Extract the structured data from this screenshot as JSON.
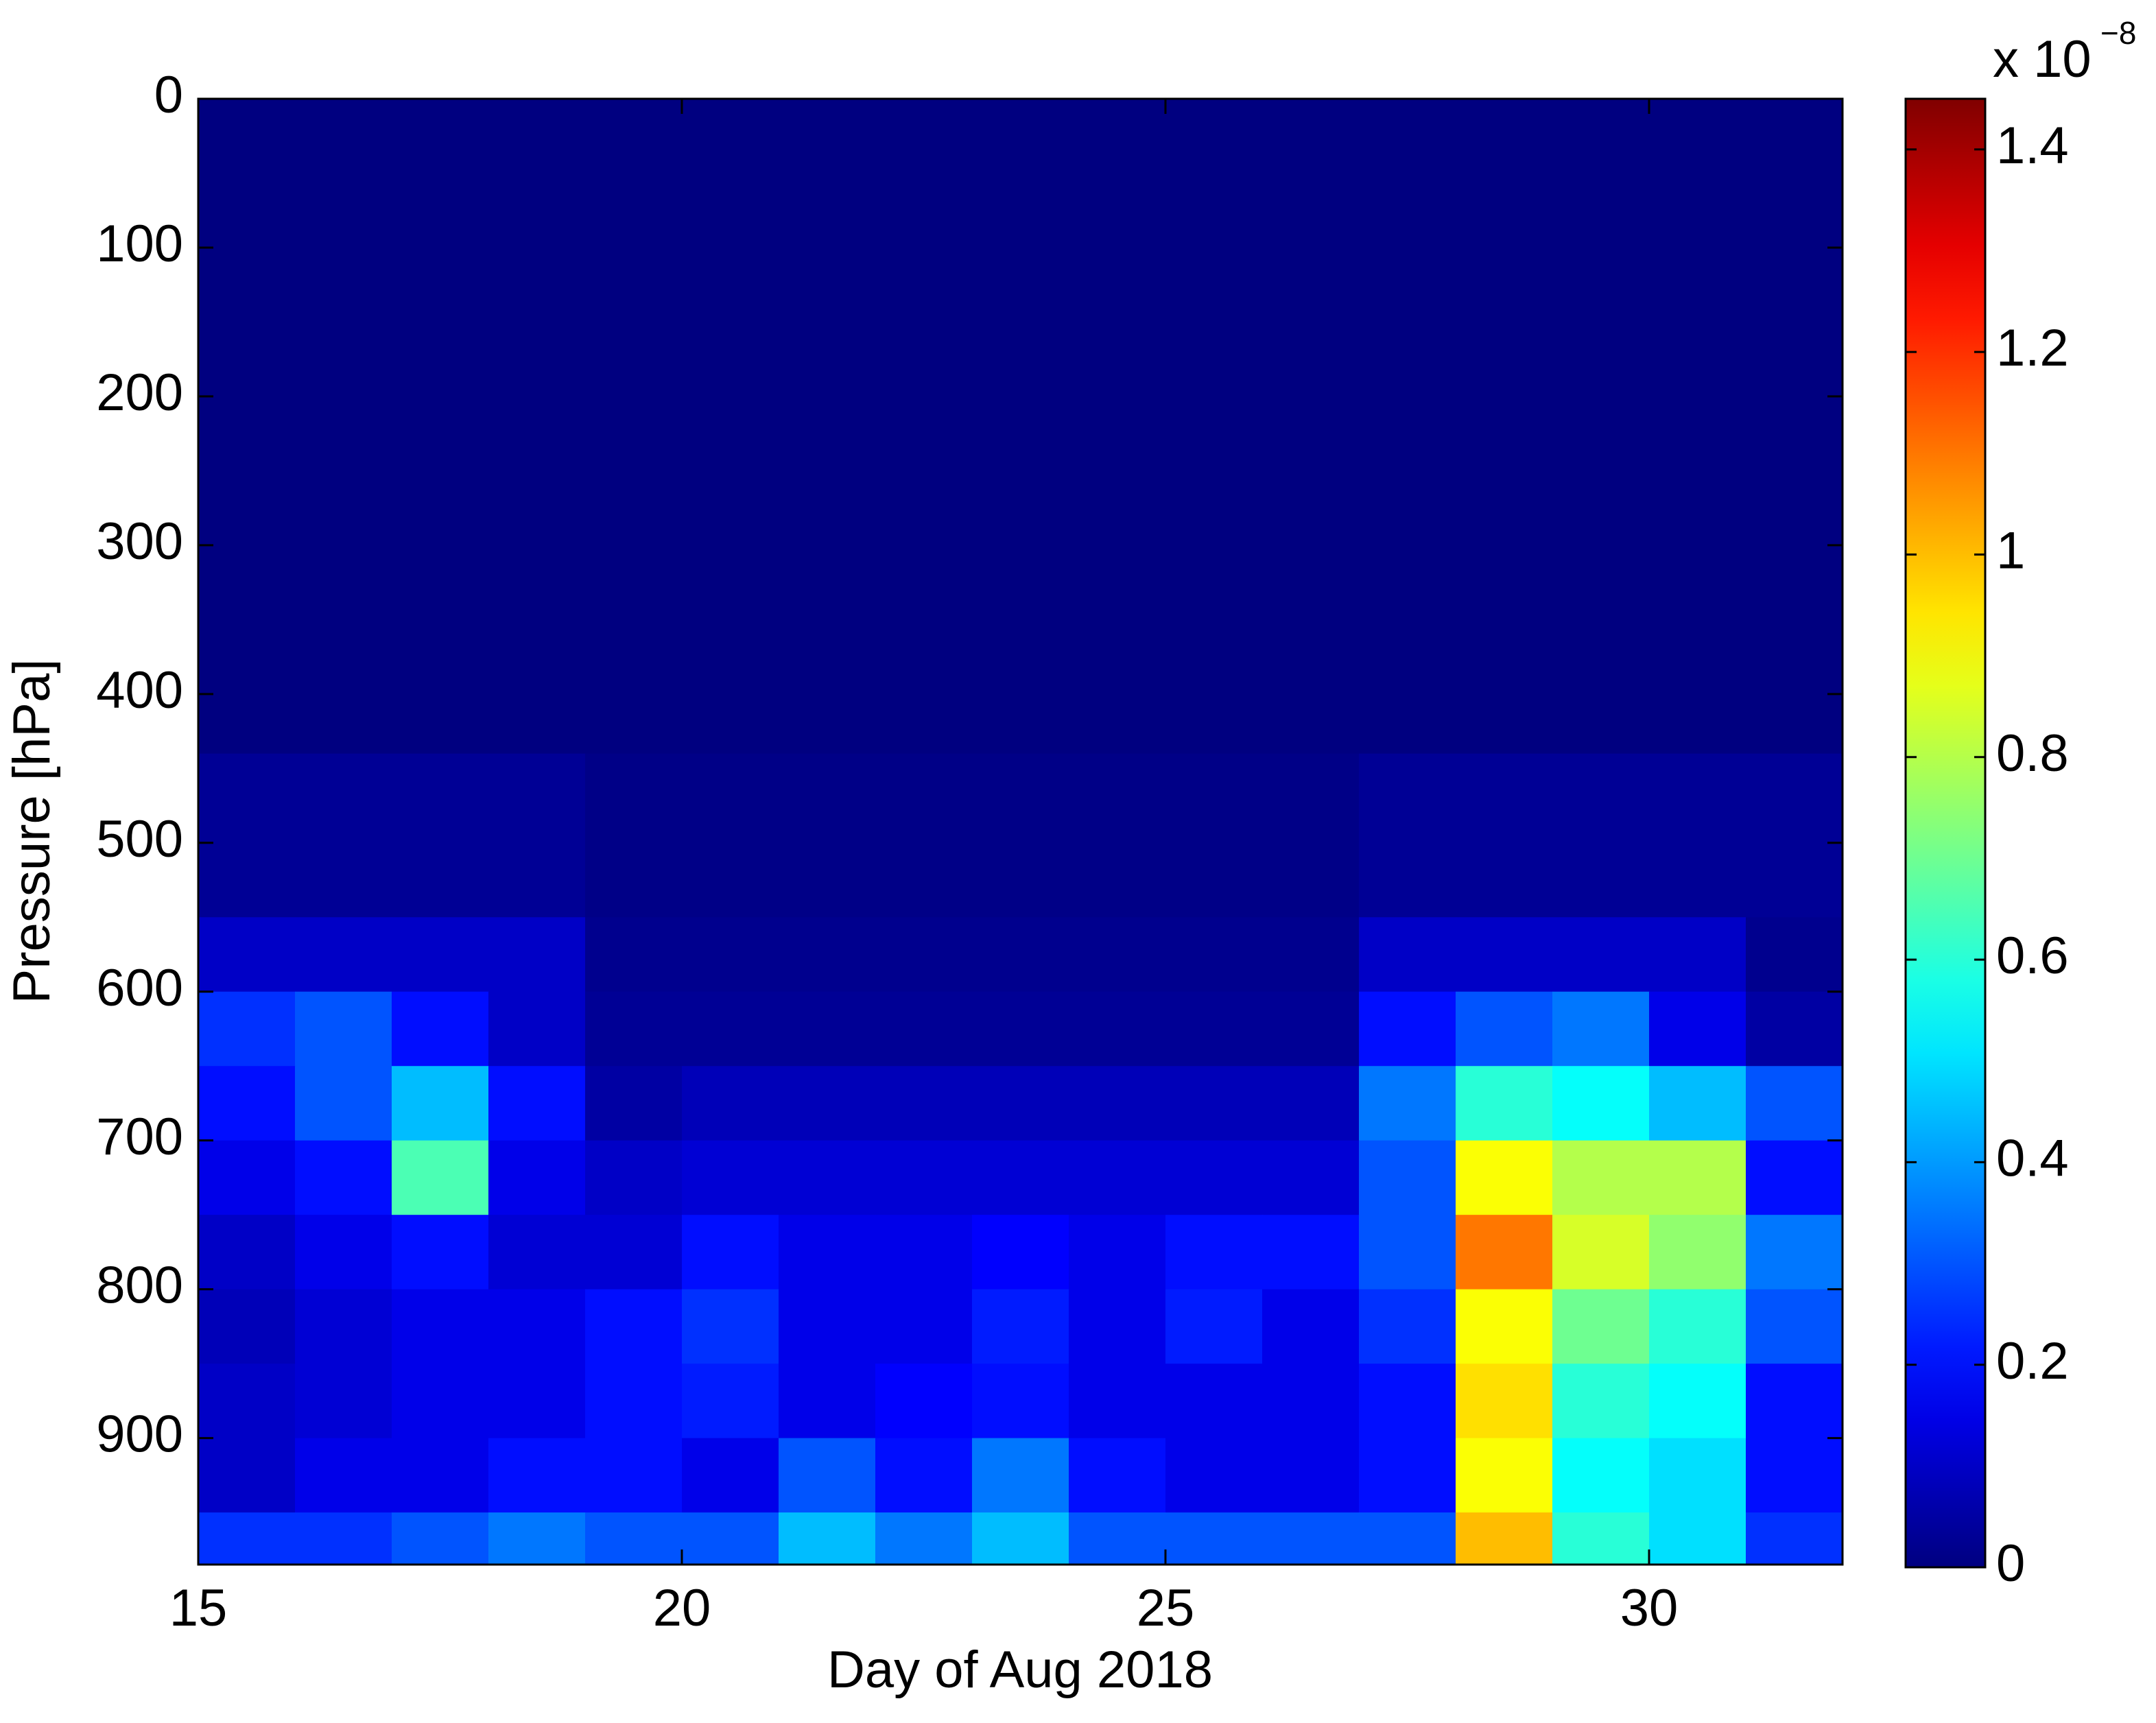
{
  "chart_data": {
    "type": "heatmap",
    "x_label": "Day of Aug 2018",
    "y_label": "Pressure [hPa]",
    "x_edges": [
      15,
      16,
      17,
      18,
      19,
      20,
      21,
      22,
      23,
      24,
      25,
      26,
      27,
      28,
      29,
      30,
      31,
      32
    ],
    "y_edges": [
      0,
      440,
      550,
      600,
      650,
      700,
      750,
      800,
      850,
      900,
      950,
      985
    ],
    "values": [
      [
        0,
        0,
        0,
        0,
        0,
        0,
        0,
        0,
        0,
        0,
        0,
        0,
        0,
        0,
        0,
        0,
        0
      ],
      [
        0.03,
        0.03,
        0.03,
        0.03,
        0.01,
        0.01,
        0.01,
        0.01,
        0.01,
        0.01,
        0.01,
        0.01,
        0.03,
        0.03,
        0.03,
        0.03,
        0.03
      ],
      [
        0.1,
        0.1,
        0.1,
        0.1,
        0.02,
        0.02,
        0.02,
        0.02,
        0.02,
        0.02,
        0.02,
        0.02,
        0.1,
        0.1,
        0.1,
        0.1,
        0.02
      ],
      [
        0.25,
        0.3,
        0.2,
        0.1,
        0.03,
        0.03,
        0.03,
        0.03,
        0.03,
        0.03,
        0.03,
        0.03,
        0.2,
        0.3,
        0.35,
        0.15,
        0.05
      ],
      [
        0.2,
        0.3,
        0.45,
        0.2,
        0.05,
        0.08,
        0.08,
        0.08,
        0.08,
        0.08,
        0.08,
        0.08,
        0.35,
        0.6,
        0.55,
        0.45,
        0.3
      ],
      [
        0.15,
        0.2,
        0.65,
        0.15,
        0.1,
        0.12,
        0.12,
        0.12,
        0.12,
        0.12,
        0.12,
        0.12,
        0.3,
        0.9,
        0.8,
        0.8,
        0.2
      ],
      [
        0.1,
        0.15,
        0.2,
        0.12,
        0.12,
        0.2,
        0.15,
        0.15,
        0.18,
        0.15,
        0.2,
        0.2,
        0.3,
        1.1,
        0.85,
        0.75,
        0.35
      ],
      [
        0.08,
        0.12,
        0.15,
        0.15,
        0.2,
        0.25,
        0.15,
        0.15,
        0.22,
        0.15,
        0.22,
        0.15,
        0.25,
        0.9,
        0.7,
        0.6,
        0.3
      ],
      [
        0.1,
        0.12,
        0.15,
        0.15,
        0.2,
        0.22,
        0.15,
        0.18,
        0.2,
        0.15,
        0.15,
        0.15,
        0.2,
        0.95,
        0.6,
        0.55,
        0.2
      ],
      [
        0.1,
        0.15,
        0.15,
        0.2,
        0.2,
        0.15,
        0.3,
        0.2,
        0.35,
        0.2,
        0.15,
        0.15,
        0.2,
        0.9,
        0.55,
        0.5,
        0.2
      ],
      [
        0.25,
        0.25,
        0.3,
        0.35,
        0.3,
        0.3,
        0.45,
        0.35,
        0.45,
        0.3,
        0.3,
        0.3,
        0.3,
        1.0,
        0.6,
        0.5,
        0.25
      ]
    ],
    "xlim": [
      15,
      32
    ],
    "xticks": [
      15,
      20,
      25,
      30
    ],
    "ylim": [
      0,
      985
    ],
    "y_reversed": true,
    "yticks": [
      0,
      100,
      200,
      300,
      400,
      500,
      600,
      700,
      800,
      900
    ],
    "colormap": "jet",
    "clim": [
      0,
      1.45
    ],
    "cticks": [
      0,
      0.2,
      0.4,
      0.6,
      0.8,
      1,
      1.2,
      1.4
    ],
    "colorbar_multiplier": "x 10",
    "colorbar_exponent": "−8"
  }
}
